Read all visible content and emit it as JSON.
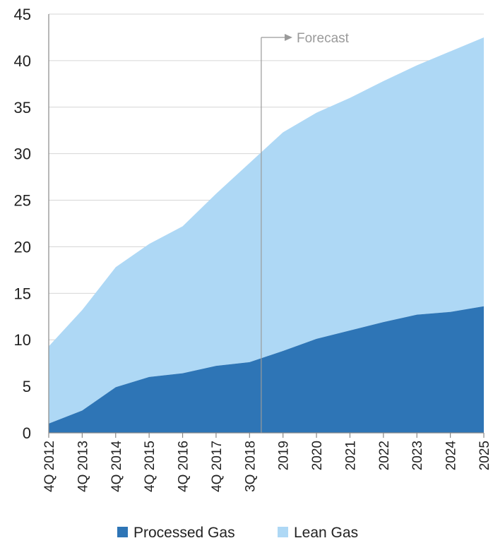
{
  "chart_data": {
    "type": "area",
    "stacked": true,
    "categories": [
      "4Q 2012",
      "4Q 2013",
      "4Q 2014",
      "4Q 2015",
      "4Q 2016",
      "4Q 2017",
      "3Q 2018",
      "2019",
      "2020",
      "2021",
      "2022",
      "2023",
      "2024",
      "2025"
    ],
    "series": [
      {
        "name": "Processed Gas",
        "color": "#2e75b6",
        "values": [
          1.0,
          2.4,
          4.9,
          6.0,
          6.4,
          7.2,
          7.6,
          8.8,
          10.1,
          11.0,
          11.9,
          12.7,
          13.0,
          13.6
        ]
      },
      {
        "name": "Lean Gas",
        "color": "#aed8f5",
        "values": [
          8.3,
          10.8,
          12.9,
          14.3,
          15.8,
          18.5,
          21.4,
          23.5,
          24.3,
          25.0,
          25.9,
          26.8,
          28.0,
          28.9
        ]
      }
    ],
    "ylim": [
      0,
      45
    ],
    "yticks": [
      "0",
      "5",
      "10",
      "15",
      "20",
      "25",
      "30",
      "35",
      "40",
      "45"
    ],
    "grid": true,
    "legend_position": "bottom",
    "annotation": {
      "text": "Forecast",
      "x_position": 6.35,
      "color": "#9a9a9a"
    }
  }
}
